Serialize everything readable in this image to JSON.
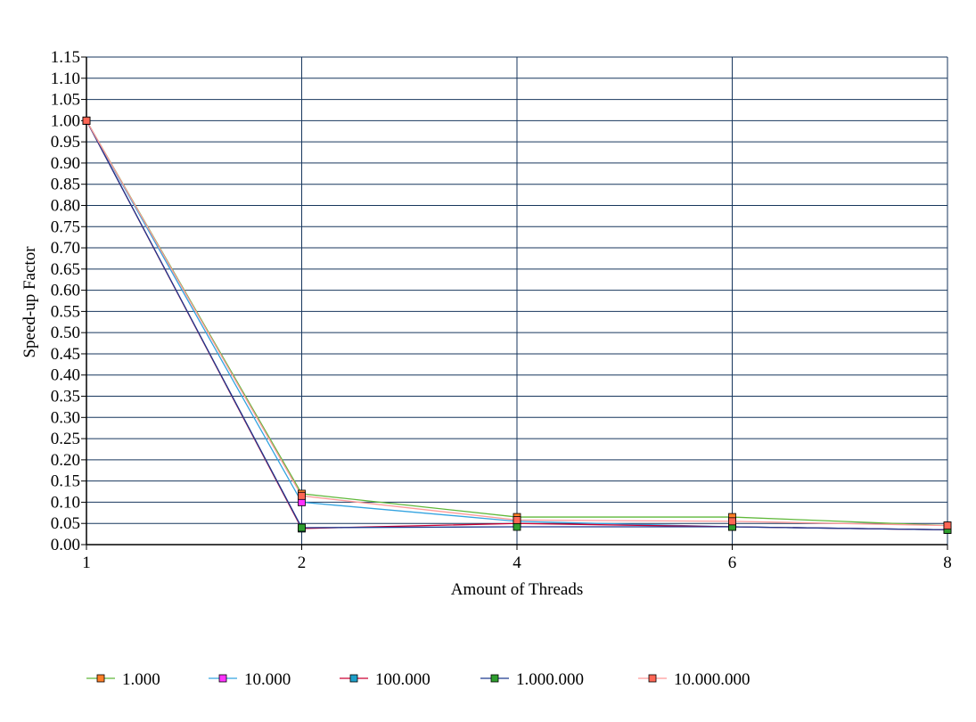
{
  "chart_data": {
    "type": "line",
    "title": "",
    "xlabel": "Amount of Threads",
    "ylabel": "Speed-up Factor",
    "categories": [
      "1",
      "2",
      "4",
      "6",
      "8"
    ],
    "ylim": [
      0,
      1.15
    ],
    "ystep": 0.05,
    "yticks": [
      "0.00",
      "0.05",
      "0.10",
      "0.15",
      "0.20",
      "0.25",
      "0.30",
      "0.35",
      "0.40",
      "0.45",
      "0.50",
      "0.55",
      "0.60",
      "0.65",
      "0.70",
      "0.75",
      "0.80",
      "0.85",
      "0.90",
      "0.95",
      "1.00",
      "1.05",
      "1.10",
      "1.15"
    ],
    "grid": true,
    "legend_position": "bottom",
    "series": [
      {
        "name": "1.000",
        "line_color": "#5fb83a",
        "marker_color": "#ff7f27",
        "values": [
          1.0,
          0.12,
          0.065,
          0.065,
          0.045
        ]
      },
      {
        "name": "10.000",
        "line_color": "#33a3e0",
        "marker_color": "#ff33ff",
        "values": [
          1.0,
          0.1,
          0.055,
          0.042,
          0.035
        ]
      },
      {
        "name": "100.000",
        "line_color": "#cc0033",
        "marker_color": "#1e9fc9",
        "values": [
          1.0,
          0.038,
          0.05,
          0.042,
          0.035
        ]
      },
      {
        "name": "1.000.000",
        "line_color": "#1f3b8f",
        "marker_color": "#2e9e2e",
        "values": [
          1.0,
          0.04,
          0.042,
          0.042,
          0.035
        ]
      },
      {
        "name": "10.000.000",
        "line_color": "#ff9999",
        "marker_color": "#ff6655",
        "values": [
          1.0,
          0.115,
          0.058,
          0.055,
          0.045
        ]
      }
    ]
  }
}
